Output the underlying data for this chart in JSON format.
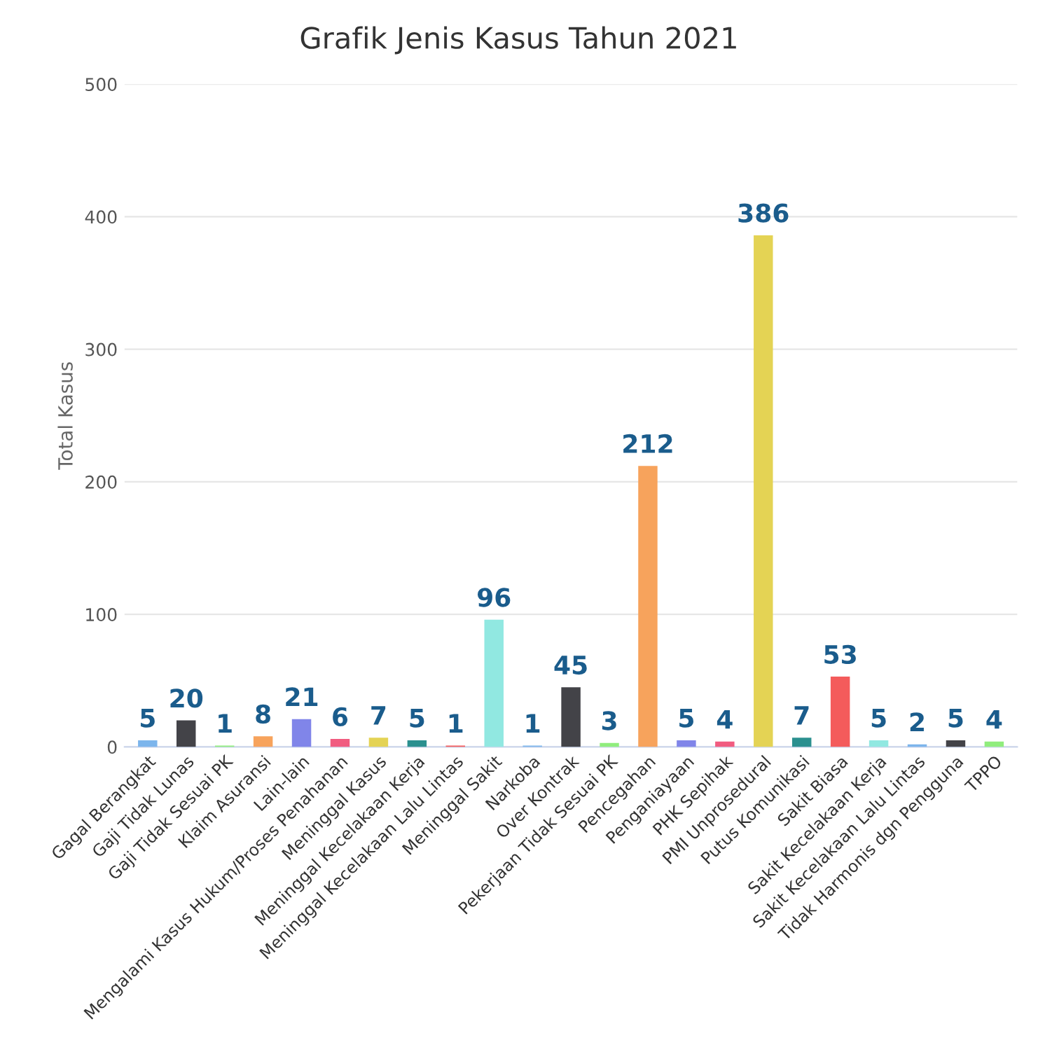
{
  "chart_data": {
    "type": "bar",
    "title": "Grafik Jenis Kasus Tahun 2021",
    "ylabel": "Total Kasus",
    "categories": [
      "Gagal Berangkat",
      "Gaji Tidak Lunas",
      "Gaji Tidak Sesuai PK",
      "Klaim Asuransi",
      "Lain-lain",
      "Mengalami Kasus Hukum/Proses Penahanan",
      "Meninggal Kasus",
      "Meninggal Kecelakaan Kerja",
      "Meninggal Kecelakaan Lalu Lintas",
      "Meninggal Sakit",
      "Narkoba",
      "Over Kontrak",
      "Pekerjaan Tidak Sesuai PK",
      "Pencegahan",
      "Penganiayaan",
      "PHK Sepihak",
      "PMI Unprosedural",
      "Putus Komunikasi",
      "Sakit Biasa",
      "Sakit Kecelakaan Kerja",
      "Sakit Kecelakaan Lalu Lintas",
      "Tidak Harmonis dgn Pengguna",
      "TPPO"
    ],
    "values": [
      5,
      20,
      1,
      8,
      21,
      6,
      7,
      5,
      1,
      96,
      1,
      45,
      3,
      212,
      5,
      4,
      386,
      7,
      53,
      5,
      2,
      5,
      4
    ],
    "colors": [
      "#7cb5ec",
      "#434348",
      "#90ed7d",
      "#f7a35c",
      "#8085e9",
      "#f15c80",
      "#e4d354",
      "#2b908f",
      "#f45b5b",
      "#91e8e1",
      "#7cb5ec",
      "#434348",
      "#90ed7d",
      "#f7a35c",
      "#8085e9",
      "#f15c80",
      "#e4d354",
      "#2b908f",
      "#f45b5b",
      "#91e8e1",
      "#7cb5ec",
      "#434348",
      "#90ed7d"
    ],
    "ylim": [
      0,
      500
    ],
    "yticks": [
      0,
      100,
      200,
      300,
      400,
      500
    ],
    "grid": "y",
    "data_labels": true
  }
}
